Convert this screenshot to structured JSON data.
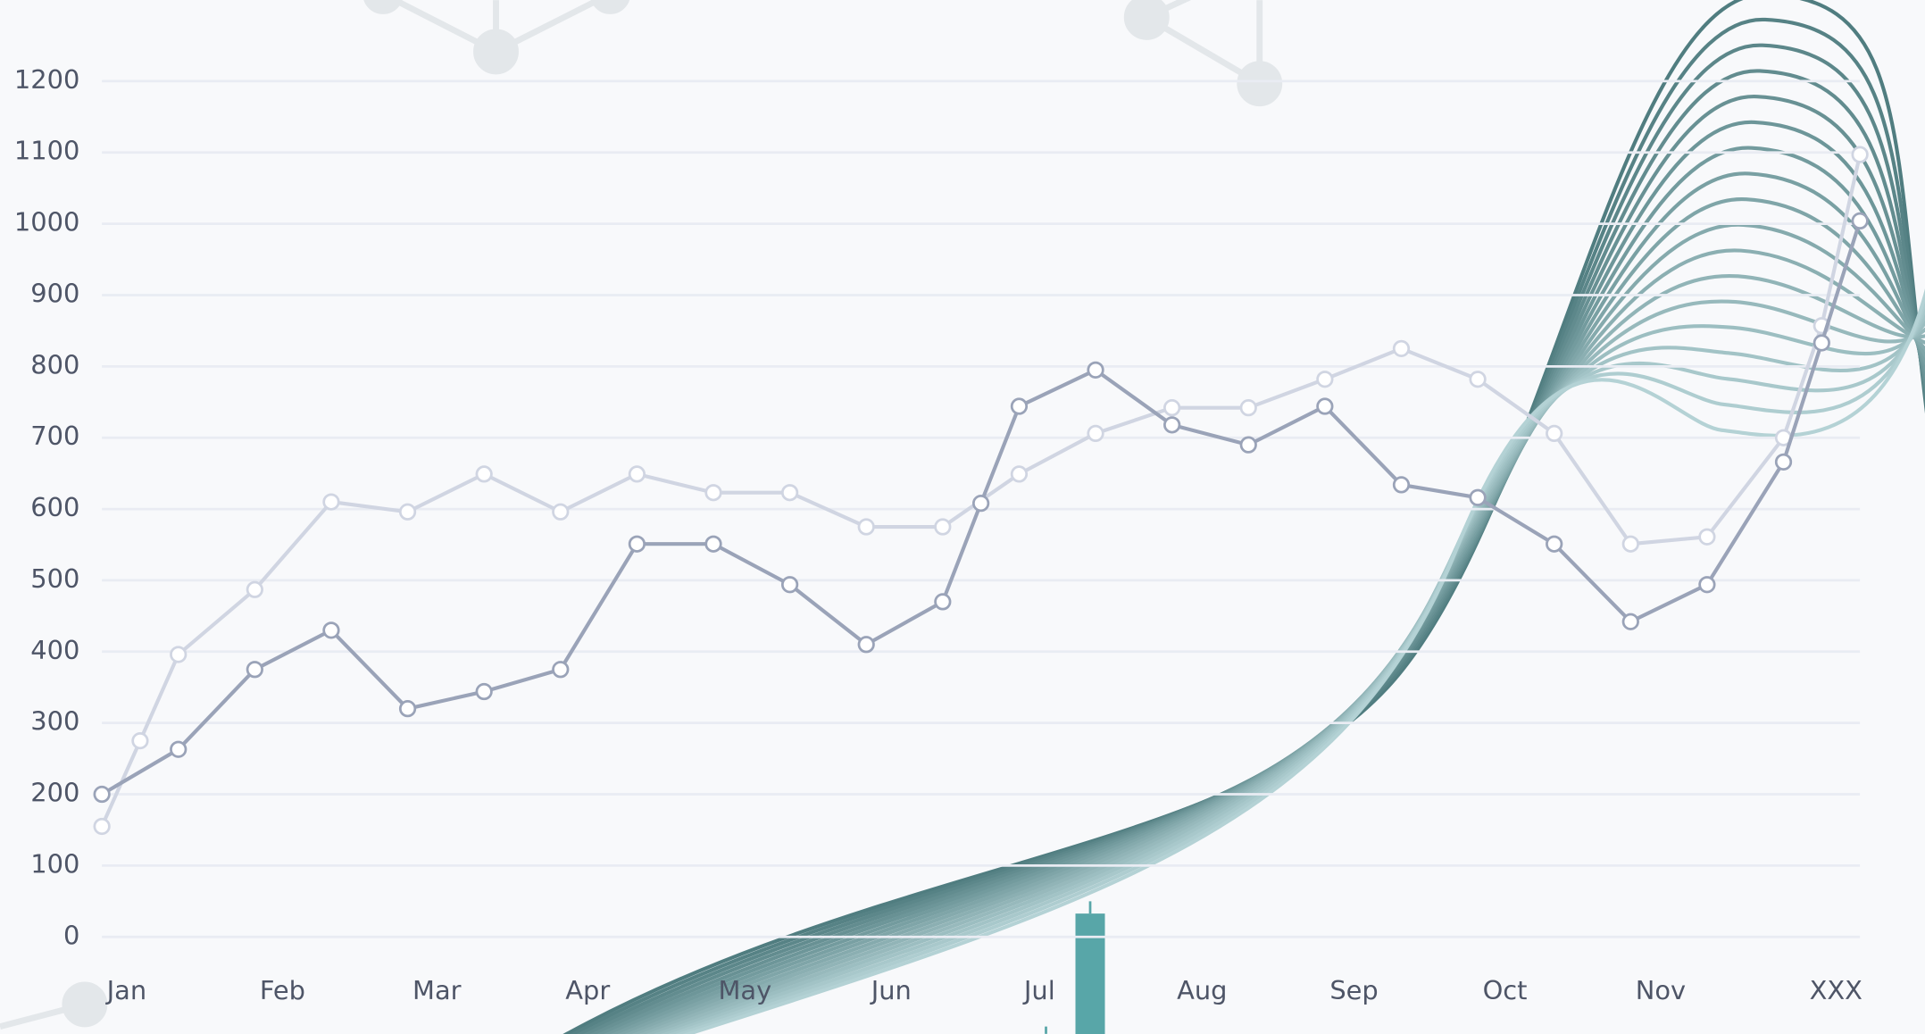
{
  "chart_data": {
    "type": "line",
    "xlim": [
      0,
      23
    ],
    "xticks": [
      {
        "value": 0,
        "label": "Jan"
      },
      {
        "value": 2,
        "label": "Feb"
      },
      {
        "value": 4,
        "label": "Mar"
      },
      {
        "value": 6,
        "label": "Apr"
      },
      {
        "value": 8,
        "label": "May"
      },
      {
        "value": 10,
        "label": "Jun"
      },
      {
        "value": 12,
        "label": "Jul"
      },
      {
        "value": 14,
        "label": "Aug"
      },
      {
        "value": 16,
        "label": "Sep"
      },
      {
        "value": 18,
        "label": "Oct"
      },
      {
        "value": 20,
        "label": "Nov"
      },
      {
        "value": 23,
        "label": "XXX"
      }
    ],
    "ylim": [
      0,
      1200
    ],
    "yticks": [
      0,
      100,
      200,
      300,
      400,
      500,
      600,
      700,
      800,
      900,
      1000,
      1100,
      1200
    ],
    "grid": true,
    "series": [
      {
        "color": "#d0d5e2",
        "x": [
          0,
          0.5,
          1,
          2,
          3,
          4,
          5,
          6,
          7,
          8,
          9,
          10,
          11,
          12,
          13,
          14,
          15,
          16,
          17,
          18,
          19,
          20,
          21,
          22,
          22.5,
          23
        ],
        "values": [
          155,
          275,
          396,
          487,
          610,
          596,
          649,
          596,
          649,
          623,
          623,
          575,
          575,
          649,
          706,
          742,
          742,
          782,
          825,
          782,
          706,
          551,
          561,
          700,
          857,
          1097
        ]
      },
      {
        "color": "#9aa3b8",
        "x": [
          0,
          1,
          2,
          3,
          4,
          5,
          6,
          7,
          8,
          9,
          10,
          11,
          11.5,
          12,
          13,
          14,
          15,
          16,
          17,
          18,
          19,
          20,
          21,
          22,
          22.5,
          23
        ],
        "values": [
          200,
          263,
          375,
          430,
          320,
          344,
          375,
          551,
          551,
          494,
          410,
          470,
          608,
          744,
          795,
          718,
          690,
          744,
          634,
          616,
          551,
          442,
          494,
          666,
          833,
          1004
        ]
      }
    ]
  }
}
